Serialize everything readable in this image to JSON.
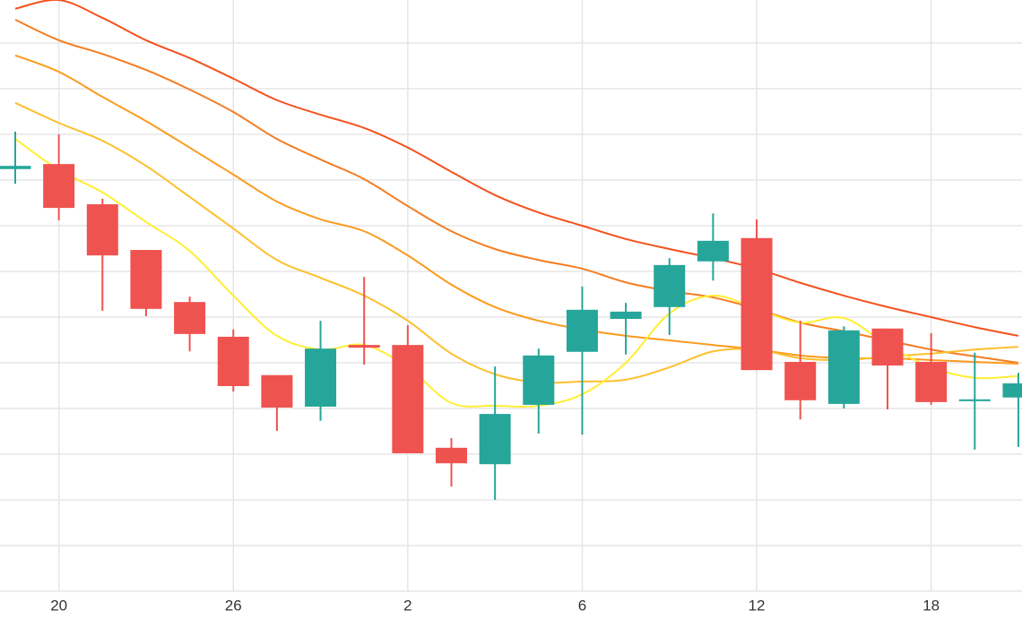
{
  "chart_data": {
    "type": "candlestick",
    "categories": [
      null,
      "20",
      null,
      null,
      null,
      "26",
      null,
      null,
      null,
      "2",
      null,
      null,
      null,
      "6",
      null,
      null,
      null,
      "12",
      null,
      null,
      null,
      "18",
      null,
      null
    ],
    "open": [
      9.24,
      9.35,
      8.47,
      7.47,
      6.33,
      5.57,
      4.73,
      4.04,
      5.39,
      5.39,
      3.14,
      2.78,
      4.08,
      5.24,
      5.96,
      6.22,
      7.22,
      7.73,
      5.02,
      4.1,
      5.75,
      5.02,
      4.16,
      4.24
    ],
    "high": [
      10.06,
      10.0,
      8.59,
      7.47,
      6.45,
      5.73,
      4.73,
      5.92,
      6.88,
      5.82,
      3.35,
      4.92,
      5.31,
      6.67,
      6.31,
      7.29,
      8.27,
      8.14,
      5.92,
      5.8,
      5.75,
      5.65,
      5.22,
      4.78
    ],
    "low": [
      8.92,
      8.12,
      6.14,
      6.02,
      5.25,
      4.37,
      3.51,
      3.73,
      4.96,
      3.02,
      2.29,
      2.0,
      3.45,
      3.43,
      5.18,
      5.61,
      6.8,
      4.84,
      3.76,
      4.0,
      3.98,
      4.08,
      3.1,
      3.16
    ],
    "close": [
      9.31,
      8.39,
      7.35,
      6.18,
      5.63,
      4.49,
      4.02,
      5.31,
      5.33,
      3.02,
      2.8,
      3.88,
      5.16,
      6.16,
      6.12,
      7.14,
      7.67,
      4.84,
      4.18,
      5.71,
      4.94,
      4.14,
      4.2,
      4.55
    ],
    "up_color": "#26a69a",
    "down_color": "#ef5350",
    "series": [
      {
        "color": "#f4511e",
        "values": [
          12.75,
          12.94,
          12.55,
          12.06,
          11.67,
          11.22,
          10.75,
          10.43,
          10.14,
          9.71,
          9.18,
          8.67,
          8.29,
          8.0,
          7.71,
          7.49,
          7.29,
          7.06,
          6.75,
          6.47,
          6.22,
          6.0,
          5.78,
          5.59
        ]
      },
      {
        "color": "#f57c20",
        "values": [
          12.51,
          12.06,
          11.76,
          11.41,
          10.98,
          10.49,
          9.9,
          9.45,
          9.02,
          8.43,
          7.88,
          7.49,
          7.25,
          7.06,
          6.76,
          6.57,
          6.43,
          6.18,
          5.88,
          5.69,
          5.49,
          5.29,
          5.14,
          5.0
        ]
      },
      {
        "color": "#fb9a1e",
        "values": [
          11.73,
          11.37,
          10.82,
          10.29,
          9.71,
          9.12,
          8.53,
          8.14,
          7.88,
          7.35,
          6.71,
          6.22,
          5.92,
          5.73,
          5.59,
          5.49,
          5.39,
          5.29,
          5.16,
          5.1,
          5.1,
          5.06,
          5.02,
          4.98
        ]
      },
      {
        "color": "#fbc02d",
        "values": [
          10.69,
          10.25,
          9.86,
          9.31,
          8.63,
          7.94,
          7.25,
          6.86,
          6.47,
          5.92,
          5.2,
          4.75,
          4.57,
          4.59,
          4.63,
          4.9,
          5.25,
          5.29,
          5.1,
          5.06,
          5.14,
          5.2,
          5.29,
          5.35
        ]
      },
      {
        "color": "#ffee33",
        "values": [
          9.9,
          9.22,
          8.73,
          8.08,
          7.45,
          6.47,
          5.59,
          5.29,
          5.39,
          4.9,
          4.12,
          4.06,
          4.06,
          4.31,
          5.0,
          6.08,
          6.47,
          6.18,
          5.88,
          5.98,
          5.39,
          4.9,
          4.67,
          4.71
        ]
      }
    ],
    "ylim": [
      0,
      13
    ],
    "yticks": [
      0,
      1,
      2,
      3,
      4,
      5,
      6,
      7,
      8,
      9,
      10,
      11,
      12
    ],
    "grid": true
  }
}
